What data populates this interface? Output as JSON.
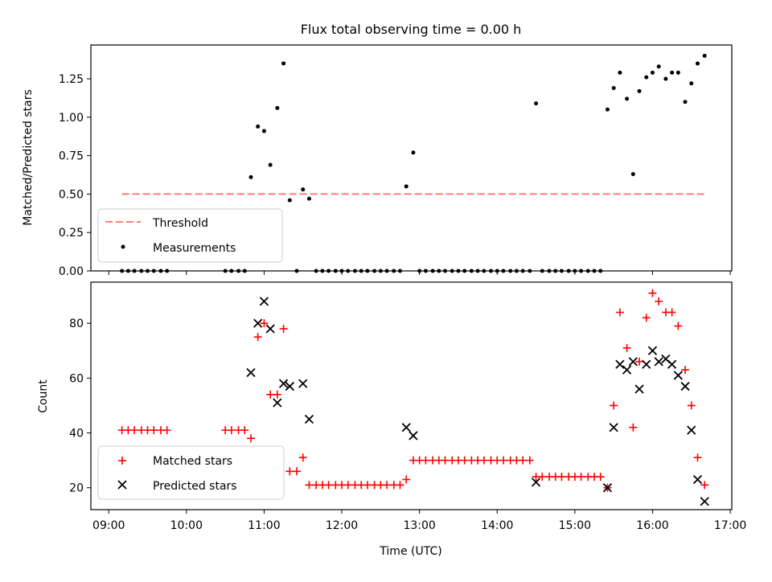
{
  "chart_data": [
    {
      "type": "scatter",
      "title": "Flux total observing time = 0.00 h",
      "ylabel": "Matched/Predicted stars",
      "xlabel": "",
      "x_unit": "hours UTC",
      "xlim": [
        8.77,
        17.02
      ],
      "ylim": [
        0.0,
        1.47
      ],
      "y_ticks": [
        0.0,
        0.25,
        0.5,
        0.75,
        1.0,
        1.25
      ],
      "y_tick_labels": [
        "0.00",
        "0.25",
        "0.50",
        "0.75",
        "1.00",
        "1.25"
      ],
      "legend_position": "lower-left",
      "series": [
        {
          "name": "Threshold",
          "kind": "dashed-line",
          "color": "#ff7b7b",
          "x": [
            9.17,
            16.67
          ],
          "values": [
            0.5,
            0.5
          ]
        },
        {
          "name": "Measurements",
          "kind": "dot",
          "color": "#000000",
          "points": [
            [
              9.17,
              0.0
            ],
            [
              9.25,
              0.0
            ],
            [
              9.33,
              0.0
            ],
            [
              9.42,
              0.0
            ],
            [
              9.5,
              0.0
            ],
            [
              9.58,
              0.0
            ],
            [
              9.67,
              0.0
            ],
            [
              9.75,
              0.0
            ],
            [
              10.5,
              0.0
            ],
            [
              10.58,
              0.0
            ],
            [
              10.67,
              0.0
            ],
            [
              10.75,
              0.0
            ],
            [
              10.83,
              0.61
            ],
            [
              10.92,
              0.94
            ],
            [
              11.0,
              0.91
            ],
            [
              11.08,
              0.69
            ],
            [
              11.17,
              1.06
            ],
            [
              11.25,
              1.35
            ],
            [
              11.33,
              0.46
            ],
            [
              11.42,
              0.0
            ],
            [
              11.5,
              0.53
            ],
            [
              11.58,
              0.47
            ],
            [
              11.67,
              0.0
            ],
            [
              11.75,
              0.0
            ],
            [
              11.83,
              0.0
            ],
            [
              11.92,
              0.0
            ],
            [
              12.0,
              0.0
            ],
            [
              12.08,
              0.0
            ],
            [
              12.17,
              0.0
            ],
            [
              12.25,
              0.0
            ],
            [
              12.33,
              0.0
            ],
            [
              12.42,
              0.0
            ],
            [
              12.5,
              0.0
            ],
            [
              12.58,
              0.0
            ],
            [
              12.67,
              0.0
            ],
            [
              12.75,
              0.0
            ],
            [
              12.83,
              0.55
            ],
            [
              12.92,
              0.77
            ],
            [
              13.0,
              0.0
            ],
            [
              13.08,
              0.0
            ],
            [
              13.17,
              0.0
            ],
            [
              13.25,
              0.0
            ],
            [
              13.33,
              0.0
            ],
            [
              13.42,
              0.0
            ],
            [
              13.5,
              0.0
            ],
            [
              13.58,
              0.0
            ],
            [
              13.67,
              0.0
            ],
            [
              13.75,
              0.0
            ],
            [
              13.83,
              0.0
            ],
            [
              13.92,
              0.0
            ],
            [
              14.0,
              0.0
            ],
            [
              14.08,
              0.0
            ],
            [
              14.17,
              0.0
            ],
            [
              14.25,
              0.0
            ],
            [
              14.33,
              0.0
            ],
            [
              14.42,
              0.0
            ],
            [
              14.5,
              1.09
            ],
            [
              14.58,
              0.0
            ],
            [
              14.67,
              0.0
            ],
            [
              14.75,
              0.0
            ],
            [
              14.83,
              0.0
            ],
            [
              14.92,
              0.0
            ],
            [
              15.0,
              0.0
            ],
            [
              15.08,
              0.0
            ],
            [
              15.17,
              0.0
            ],
            [
              15.25,
              0.0
            ],
            [
              15.33,
              0.0
            ],
            [
              15.42,
              1.05
            ],
            [
              15.5,
              1.19
            ],
            [
              15.58,
              1.29
            ],
            [
              15.67,
              1.12
            ],
            [
              15.75,
              0.63
            ],
            [
              15.83,
              1.17
            ],
            [
              15.92,
              1.26
            ],
            [
              16.0,
              1.29
            ],
            [
              16.08,
              1.33
            ],
            [
              16.17,
              1.25
            ],
            [
              16.25,
              1.29
            ],
            [
              16.33,
              1.29
            ],
            [
              16.42,
              1.1
            ],
            [
              16.5,
              1.22
            ],
            [
              16.58,
              1.35
            ],
            [
              16.67,
              1.4
            ]
          ]
        }
      ]
    },
    {
      "type": "scatter",
      "title": "",
      "xlabel": "Time (UTC)",
      "ylabel": "Count",
      "x_unit": "hours UTC",
      "xlim": [
        8.77,
        17.02
      ],
      "ylim": [
        12,
        95
      ],
      "x_ticks": [
        9,
        10,
        11,
        12,
        13,
        14,
        15,
        16,
        17
      ],
      "x_tick_labels": [
        "09:00",
        "10:00",
        "11:00",
        "12:00",
        "13:00",
        "14:00",
        "15:00",
        "16:00",
        "17:00"
      ],
      "y_ticks": [
        20,
        40,
        60,
        80
      ],
      "y_tick_labels": [
        "20",
        "40",
        "60",
        "80"
      ],
      "legend_position": "lower-left",
      "series": [
        {
          "name": "Matched stars",
          "kind": "plus",
          "color": "#ff0000",
          "points": [
            [
              9.17,
              41
            ],
            [
              9.25,
              41
            ],
            [
              9.33,
              41
            ],
            [
              9.42,
              41
            ],
            [
              9.5,
              41
            ],
            [
              9.58,
              41
            ],
            [
              9.67,
              41
            ],
            [
              9.75,
              41
            ],
            [
              10.5,
              41
            ],
            [
              10.58,
              41
            ],
            [
              10.67,
              41
            ],
            [
              10.75,
              41
            ],
            [
              10.83,
              38
            ],
            [
              10.92,
              75
            ],
            [
              11.0,
              80
            ],
            [
              11.08,
              54
            ],
            [
              11.17,
              54
            ],
            [
              11.25,
              78
            ],
            [
              11.33,
              26
            ],
            [
              11.42,
              26
            ],
            [
              11.5,
              31
            ],
            [
              11.58,
              21
            ],
            [
              11.67,
              21
            ],
            [
              11.75,
              21
            ],
            [
              11.83,
              21
            ],
            [
              11.92,
              21
            ],
            [
              12.0,
              21
            ],
            [
              12.08,
              21
            ],
            [
              12.17,
              21
            ],
            [
              12.25,
              21
            ],
            [
              12.33,
              21
            ],
            [
              12.42,
              21
            ],
            [
              12.5,
              21
            ],
            [
              12.58,
              21
            ],
            [
              12.67,
              21
            ],
            [
              12.75,
              21
            ],
            [
              12.83,
              23
            ],
            [
              12.92,
              30
            ],
            [
              13.0,
              30
            ],
            [
              13.08,
              30
            ],
            [
              13.17,
              30
            ],
            [
              13.25,
              30
            ],
            [
              13.33,
              30
            ],
            [
              13.42,
              30
            ],
            [
              13.5,
              30
            ],
            [
              13.58,
              30
            ],
            [
              13.67,
              30
            ],
            [
              13.75,
              30
            ],
            [
              13.83,
              30
            ],
            [
              13.92,
              30
            ],
            [
              14.0,
              30
            ],
            [
              14.08,
              30
            ],
            [
              14.17,
              30
            ],
            [
              14.25,
              30
            ],
            [
              14.33,
              30
            ],
            [
              14.42,
              30
            ],
            [
              14.5,
              24
            ],
            [
              14.58,
              24
            ],
            [
              14.67,
              24
            ],
            [
              14.75,
              24
            ],
            [
              14.83,
              24
            ],
            [
              14.92,
              24
            ],
            [
              15.0,
              24
            ],
            [
              15.08,
              24
            ],
            [
              15.17,
              24
            ],
            [
              15.25,
              24
            ],
            [
              15.33,
              24
            ],
            [
              15.42,
              20
            ],
            [
              15.5,
              50
            ],
            [
              15.58,
              84
            ],
            [
              15.67,
              71
            ],
            [
              15.75,
              42
            ],
            [
              15.83,
              66
            ],
            [
              15.92,
              82
            ],
            [
              16.0,
              91
            ],
            [
              16.08,
              88
            ],
            [
              16.17,
              84
            ],
            [
              16.25,
              84
            ],
            [
              16.33,
              79
            ],
            [
              16.42,
              63
            ],
            [
              16.5,
              50
            ],
            [
              16.58,
              31
            ],
            [
              16.67,
              21
            ]
          ]
        },
        {
          "name": "Predicted stars",
          "kind": "cross",
          "color": "#000000",
          "points": [
            [
              10.83,
              62
            ],
            [
              10.92,
              80
            ],
            [
              11.0,
              88
            ],
            [
              11.08,
              78
            ],
            [
              11.17,
              51
            ],
            [
              11.25,
              58
            ],
            [
              11.33,
              57
            ],
            [
              11.5,
              58
            ],
            [
              11.58,
              45
            ],
            [
              12.83,
              42
            ],
            [
              12.92,
              39
            ],
            [
              14.5,
              22
            ],
            [
              15.42,
              20
            ],
            [
              15.5,
              42
            ],
            [
              15.58,
              65
            ],
            [
              15.67,
              63
            ],
            [
              15.75,
              66
            ],
            [
              15.83,
              56
            ],
            [
              15.92,
              65
            ],
            [
              16.0,
              70
            ],
            [
              16.08,
              66
            ],
            [
              16.17,
              67
            ],
            [
              16.25,
              65
            ],
            [
              16.33,
              61
            ],
            [
              16.42,
              57
            ],
            [
              16.5,
              41
            ],
            [
              16.58,
              23
            ],
            [
              16.67,
              15
            ]
          ]
        }
      ]
    }
  ]
}
